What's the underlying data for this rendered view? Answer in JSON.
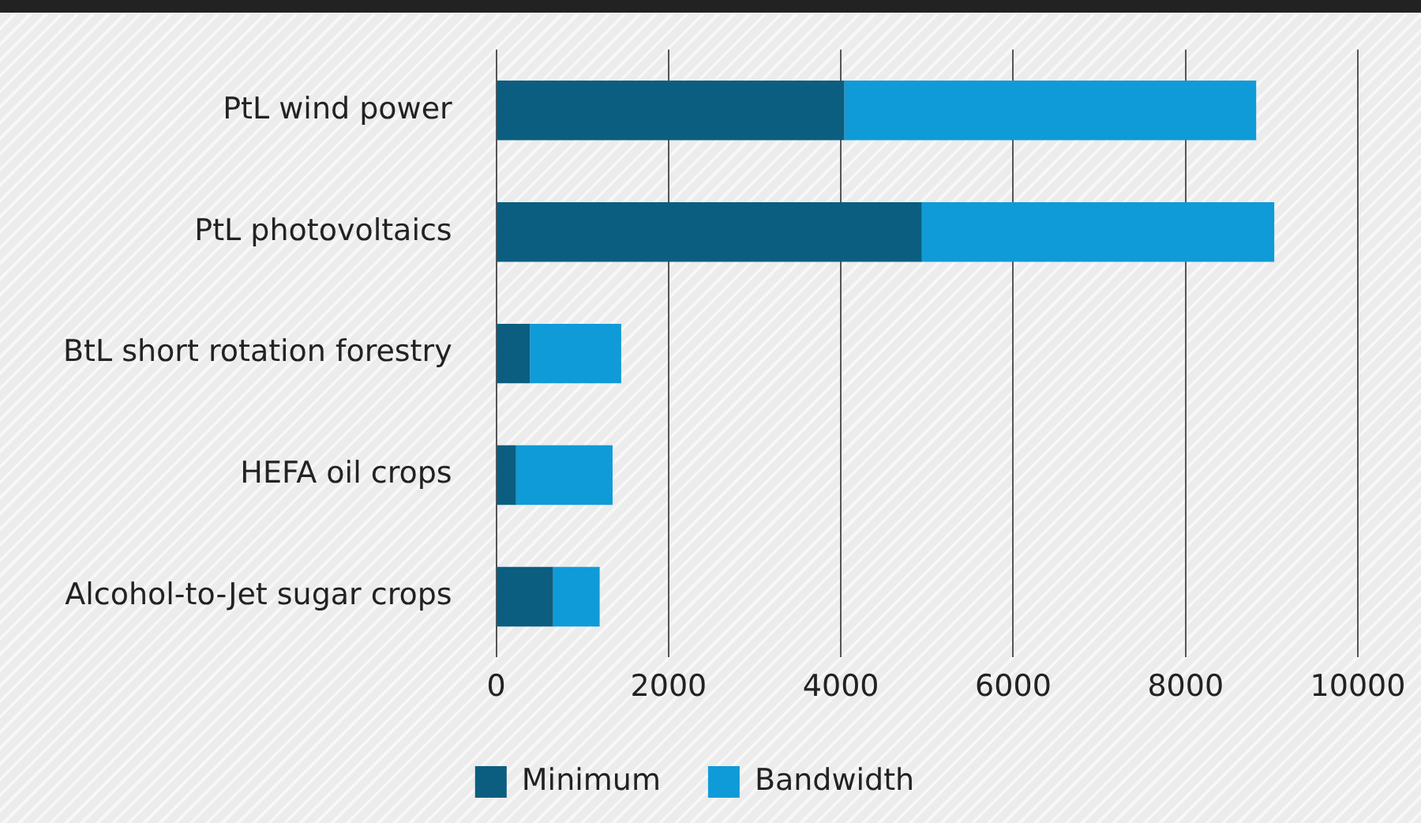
{
  "chart_data": {
    "type": "bar",
    "orientation": "horizontal",
    "stacked": true,
    "categories": [
      "PtL wind power",
      "PtL photovoltaics",
      "BtL short rotation forestry",
      "HEFA oil crops",
      "Alcohol-to-Jet sugar crops"
    ],
    "series": [
      {
        "name": "Minimum",
        "color": "#0b5e80",
        "values": [
          4040,
          4940,
          390,
          230,
          660
        ]
      },
      {
        "name": "Bandwidth",
        "color": "#0f9bd7",
        "values": [
          4780,
          4090,
          1060,
          1120,
          540
        ]
      }
    ],
    "xlim": [
      0,
      10000
    ],
    "xticks": [
      0,
      2000,
      4000,
      6000,
      8000,
      10000
    ],
    "grid": "x",
    "legend": "bottom"
  }
}
